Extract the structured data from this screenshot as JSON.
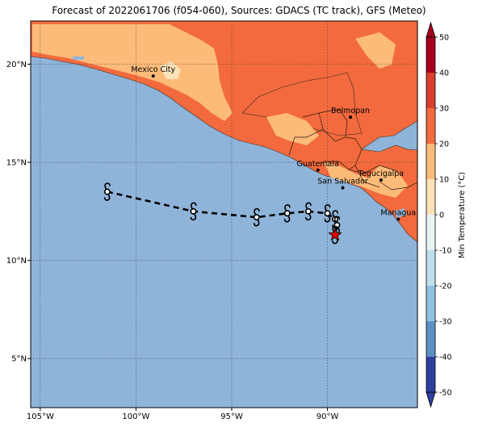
{
  "title": "Forecast of 2022061706 (f054-060), Sources: GDACS (TC track), GFS (Meteo)",
  "colors": {
    "ocean": "#8fb4d9",
    "land_warm": "#f26a3d",
    "land_mild": "#fdbb7a",
    "land_cool": "#fde2b8",
    "land_hot": "#d6402c",
    "border": "#2b1a10",
    "track": "#000000",
    "current_position": "#e00000"
  },
  "map": {
    "lon_range": [
      -105.5,
      -85.3
    ],
    "lat_range": [
      2.5,
      22.2
    ],
    "lon_ticks": [
      {
        "value": -105,
        "label": "105°W"
      },
      {
        "value": -100,
        "label": "100°W"
      },
      {
        "value": -95,
        "label": "95°W"
      },
      {
        "value": -90,
        "label": "90°W"
      }
    ],
    "lat_ticks": [
      {
        "value": 5,
        "label": "5°N"
      },
      {
        "value": 10,
        "label": "10°N"
      },
      {
        "value": 15,
        "label": "15°N"
      },
      {
        "value": 20,
        "label": "20°N"
      }
    ],
    "cities": [
      {
        "name": "Mexico City",
        "lon": -99.1,
        "lat": 19.4
      },
      {
        "name": "Belmopan",
        "lon": -88.8,
        "lat": 17.3
      },
      {
        "name": "Guatemala",
        "lon": -90.5,
        "lat": 14.6
      },
      {
        "name": "San Salvador",
        "lon": -89.2,
        "lat": 13.7
      },
      {
        "name": "Tegucigalpa",
        "lon": -87.2,
        "lat": 14.1
      },
      {
        "name": "Managua",
        "lon": -86.3,
        "lat": 12.1
      }
    ],
    "track": [
      {
        "lon": -101.5,
        "lat": 13.5
      },
      {
        "lon": -97.0,
        "lat": 12.5
      },
      {
        "lon": -93.7,
        "lat": 12.2
      },
      {
        "lon": -92.1,
        "lat": 12.4
      },
      {
        "lon": -91.0,
        "lat": 12.5
      },
      {
        "lon": -90.0,
        "lat": 12.4
      },
      {
        "lon": -89.6,
        "lat": 12.1
      },
      {
        "lon": -89.5,
        "lat": 11.8
      },
      {
        "lon": -89.6,
        "lat": 11.3
      }
    ],
    "current_position": {
      "lon": -89.6,
      "lat": 11.3
    }
  },
  "colorbar": {
    "label": "Min Temperature (°C)",
    "min": -50,
    "max": 50,
    "ticks": [
      50,
      40,
      30,
      20,
      10,
      0,
      -10,
      -20,
      -30,
      -40,
      -50
    ],
    "bands": [
      {
        "from": 40,
        "to": 50,
        "color": "#a5001e"
      },
      {
        "from": 30,
        "to": 40,
        "color": "#d6402c"
      },
      {
        "from": 20,
        "to": 30,
        "color": "#f26a3d"
      },
      {
        "from": 10,
        "to": 20,
        "color": "#fdbb7a"
      },
      {
        "from": 0,
        "to": 10,
        "color": "#fde2b8"
      },
      {
        "from": -10,
        "to": 0,
        "color": "#e8f4f6"
      },
      {
        "from": -20,
        "to": -10,
        "color": "#bde0ec"
      },
      {
        "from": -30,
        "to": -20,
        "color": "#8fc2de"
      },
      {
        "from": -40,
        "to": -30,
        "color": "#5c8fc4"
      },
      {
        "from": -50,
        "to": -40,
        "color": "#2e3f9e"
      }
    ]
  }
}
